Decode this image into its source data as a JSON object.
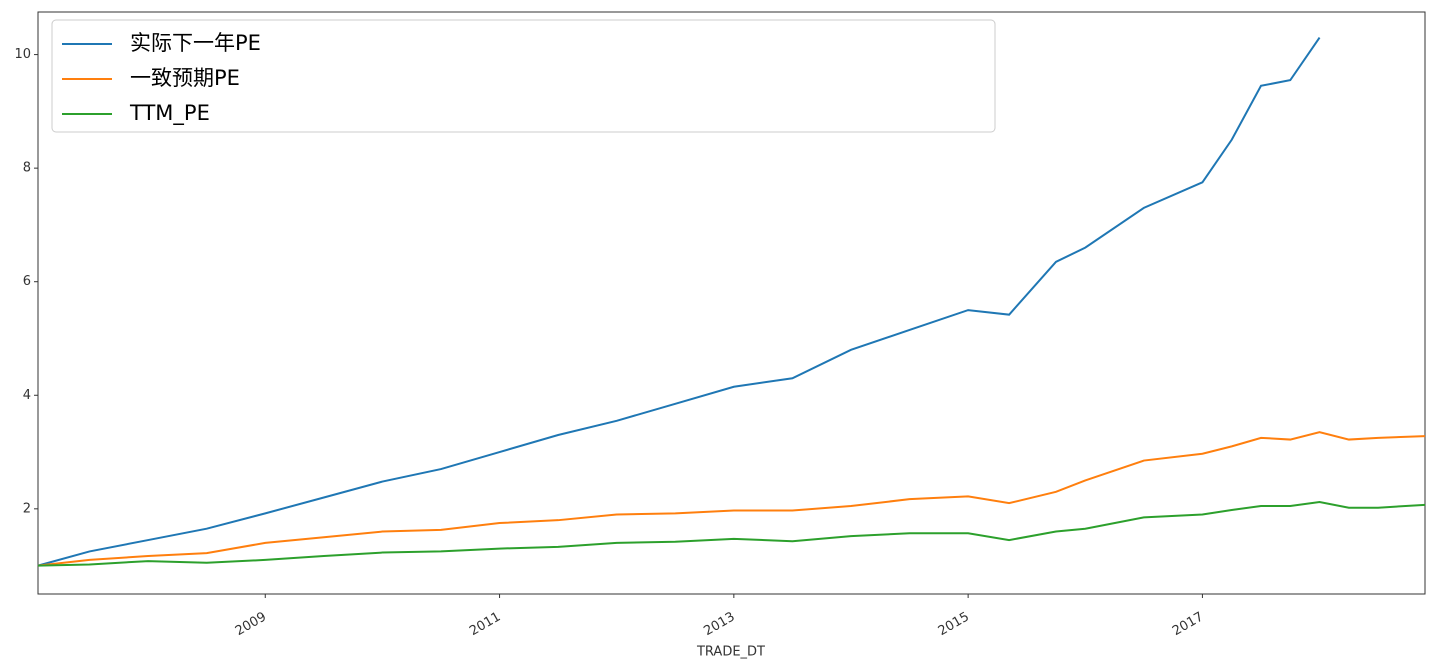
{
  "chart_data": {
    "type": "line",
    "x_label": "TRADE_DT",
    "x": [
      2007.06,
      2007.5,
      2008,
      2008.5,
      2009,
      2009.5,
      2010,
      2010.5,
      2011,
      2011.5,
      2012,
      2012.5,
      2013,
      2013.5,
      2014,
      2014.5,
      2015,
      2015.35,
      2015.75,
      2016,
      2016.5,
      2017,
      2017.25,
      2017.5,
      2017.75,
      2018,
      2018.25,
      2018.5,
      2018.9
    ],
    "series": [
      {
        "name": "实际下一年PE",
        "color": "#1f77b4",
        "values": [
          1.0,
          1.25,
          1.45,
          1.65,
          1.92,
          2.2,
          2.48,
          2.7,
          3.0,
          3.3,
          3.55,
          3.85,
          4.15,
          4.3,
          4.8,
          5.15,
          5.5,
          5.42,
          6.35,
          6.6,
          7.3,
          7.75,
          8.5,
          9.45,
          9.55,
          10.3,
          null,
          null,
          null
        ]
      },
      {
        "name": "一致预期PE",
        "color": "#ff7f0e",
        "values": [
          1.0,
          1.1,
          1.17,
          1.22,
          1.4,
          1.5,
          1.6,
          1.63,
          1.75,
          1.8,
          1.9,
          1.92,
          1.97,
          1.97,
          2.05,
          2.17,
          2.22,
          2.1,
          2.3,
          2.5,
          2.85,
          2.97,
          3.1,
          3.25,
          3.22,
          3.35,
          3.22,
          3.25,
          3.28
        ]
      },
      {
        "name": "TTM_PE",
        "color": "#2ca02c",
        "values": [
          1.0,
          1.02,
          1.08,
          1.05,
          1.1,
          1.17,
          1.23,
          1.25,
          1.3,
          1.33,
          1.4,
          1.42,
          1.47,
          1.43,
          1.52,
          1.57,
          1.57,
          1.45,
          1.6,
          1.65,
          1.85,
          1.9,
          1.98,
          2.05,
          2.05,
          2.12,
          2.02,
          2.02,
          2.07
        ]
      }
    ],
    "xlim": [
      2007.06,
      2018.9
    ],
    "xticks": [
      2009,
      2011,
      2013,
      2015,
      2017
    ],
    "ylim": [
      0.5,
      10.75
    ],
    "yticks": [
      2,
      4,
      6,
      8,
      10
    ],
    "legend": "upper left"
  }
}
